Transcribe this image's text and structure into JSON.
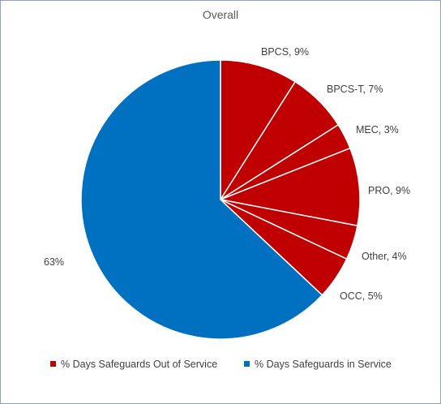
{
  "chart_data": {
    "type": "pie",
    "title": "Overall",
    "slices": [
      {
        "label": "BPCS",
        "value": 9,
        "display": "BPCS, 9%",
        "series": "out"
      },
      {
        "label": "BPCS-T",
        "value": 7,
        "display": "BPCS-T, 7%",
        "series": "out"
      },
      {
        "label": "MEC",
        "value": 3,
        "display": "MEC, 3%",
        "series": "out"
      },
      {
        "label": "PRO",
        "value": 9,
        "display": "PRO, 9%",
        "series": "out"
      },
      {
        "label": "Other",
        "value": 4,
        "display": "Other, 4%",
        "series": "out"
      },
      {
        "label": "OCC",
        "value": 5,
        "display": "OCC, 5%",
        "series": "out"
      },
      {
        "label": "",
        "value": 63,
        "display": "63%",
        "series": "in"
      }
    ],
    "legend": {
      "position": "bottom",
      "entries": [
        {
          "key": "out",
          "label": "% Days Safeguards Out of Service",
          "color": "#c00000"
        },
        {
          "key": "in",
          "label": "% Days Safeguards in Service",
          "color": "#0070c0"
        }
      ]
    },
    "colors": {
      "out": "#c00000",
      "in": "#0070c0",
      "separator": "#ffffff"
    }
  }
}
